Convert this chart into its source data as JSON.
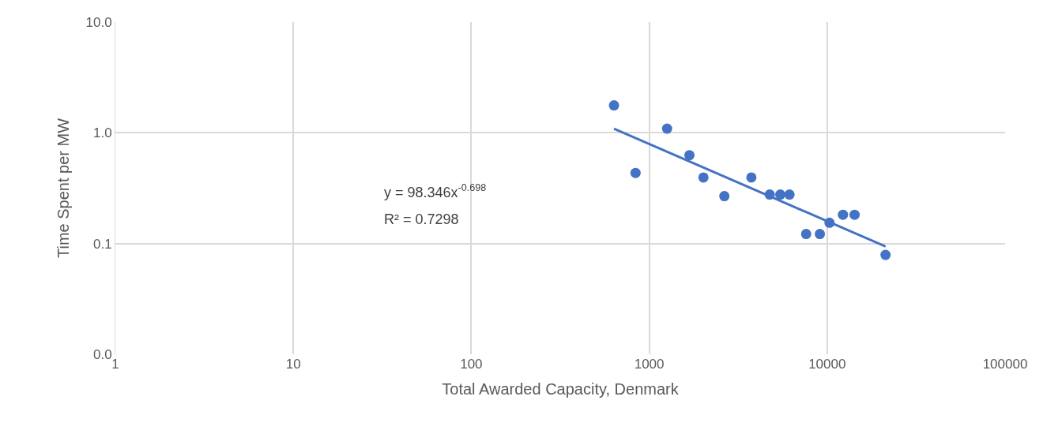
{
  "chart_data": {
    "type": "scatter",
    "xlabel": "Total Awarded Capacity, Denmark",
    "ylabel": "Time Spent per MW",
    "log": "xy",
    "grid": true,
    "xlim": [
      1,
      100000
    ],
    "xticks": [
      1,
      10,
      100,
      1000,
      10000,
      100000
    ],
    "ylim": [
      0.01,
      10
    ],
    "yticks": [
      {
        "value": 0.01,
        "label": "0.0"
      },
      {
        "value": 0.1,
        "label": "0.1"
      },
      {
        "value": 1,
        "label": "1.0"
      },
      {
        "value": 10,
        "label": "10.0"
      }
    ],
    "series": [
      {
        "marker": "circle",
        "color": "#4472c4",
        "x": [
          634,
          838,
          1260,
          1683,
          2017,
          2644,
          3750,
          4757,
          5453,
          6143,
          7621,
          9100,
          10310,
          12270,
          14260,
          21280
        ],
        "values": [
          1.77,
          0.434,
          1.09,
          0.628,
          0.395,
          0.268,
          0.395,
          0.277,
          0.277,
          0.277,
          0.122,
          0.122,
          0.154,
          0.182,
          0.182,
          0.079
        ]
      },
      {
        "type": "line",
        "marker": "none",
        "color": "#4472c4",
        "x": [
          634,
          21280
        ],
        "values": [
          1.09,
          0.094
        ]
      }
    ],
    "annotations": [
      "y = 98.346x$^{-0.698}$",
      "R² = 0.7298"
    ]
  }
}
